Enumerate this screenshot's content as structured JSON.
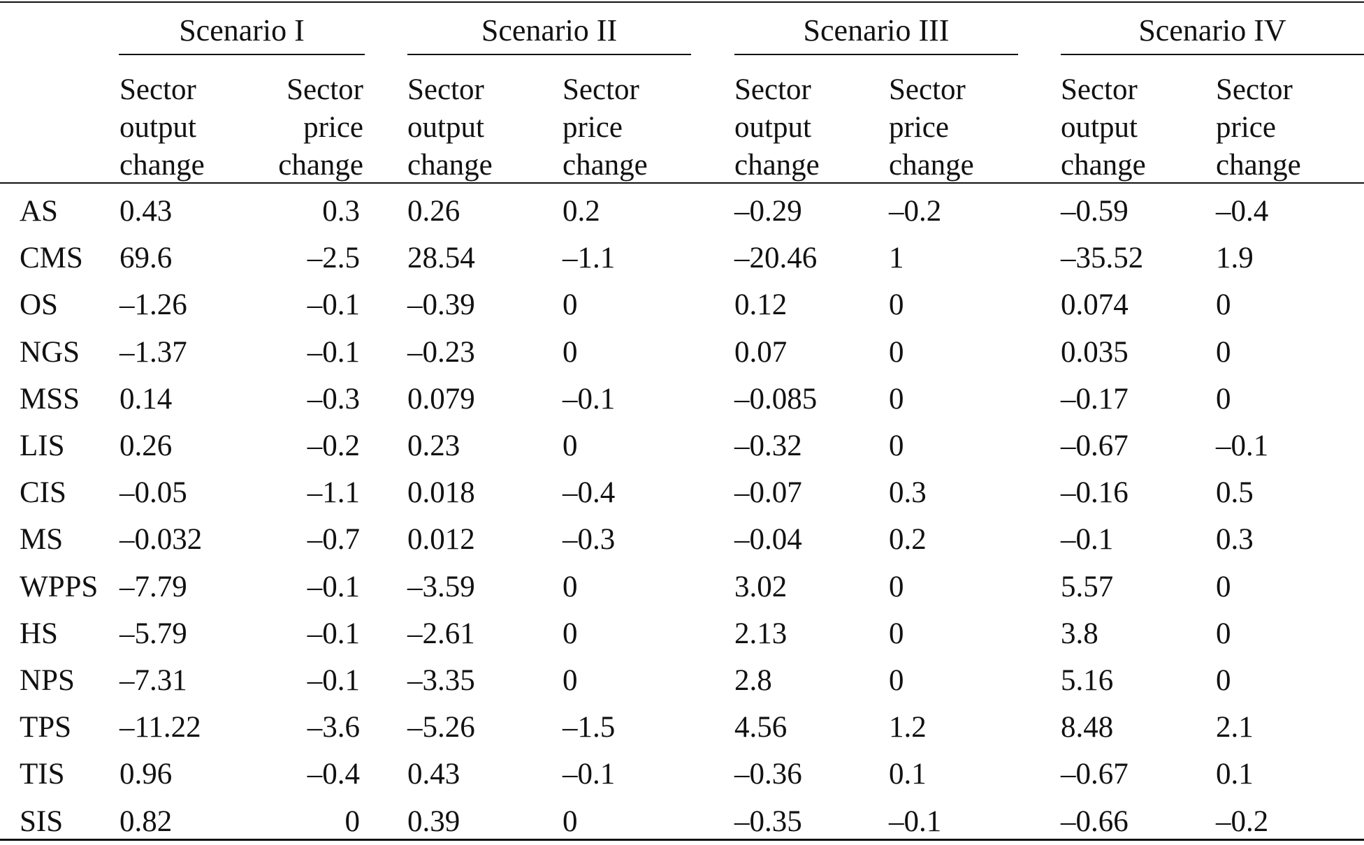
{
  "scenarios": [
    {
      "title": "Scenario I"
    },
    {
      "title": "Scenario II"
    },
    {
      "title": "Scenario III"
    },
    {
      "title": "Scenario IV"
    }
  ],
  "subheaders": {
    "output": "Sector\noutput\nchange",
    "price": "Sector\nprice\nchange"
  },
  "rows": [
    {
      "sector": "AS",
      "values": [
        "0.43",
        "0.3",
        "0.26",
        "0.2",
        "–0.29",
        "–0.2",
        "–0.59",
        "–0.4"
      ]
    },
    {
      "sector": "CMS",
      "values": [
        "69.6",
        "–2.5",
        "28.54",
        "–1.1",
        "–20.46",
        "1",
        "–35.52",
        "1.9"
      ]
    },
    {
      "sector": "OS",
      "values": [
        "–1.26",
        "–0.1",
        "–0.39",
        "0",
        "0.12",
        "0",
        "0.074",
        "0"
      ]
    },
    {
      "sector": "NGS",
      "values": [
        "–1.37",
        "–0.1",
        "–0.23",
        "0",
        "0.07",
        "0",
        "0.035",
        "0"
      ]
    },
    {
      "sector": "MSS",
      "values": [
        "0.14",
        "–0.3",
        "0.079",
        "–0.1",
        "–0.085",
        "0",
        "–0.17",
        "0"
      ]
    },
    {
      "sector": "LIS",
      "values": [
        "0.26",
        "–0.2",
        "0.23",
        "0",
        "–0.32",
        "0",
        "–0.67",
        "–0.1"
      ]
    },
    {
      "sector": "CIS",
      "values": [
        "–0.05",
        "–1.1",
        "0.018",
        "–0.4",
        "–0.07",
        "0.3",
        "–0.16",
        "0.5"
      ]
    },
    {
      "sector": "MS",
      "values": [
        "–0.032",
        "–0.7",
        "0.012",
        "–0.3",
        "–0.04",
        "0.2",
        "–0.1",
        "0.3"
      ]
    },
    {
      "sector": "WPPS",
      "values": [
        "–7.79",
        "–0.1",
        "–3.59",
        "0",
        "3.02",
        "0",
        "5.57",
        "0"
      ]
    },
    {
      "sector": "HS",
      "values": [
        "–5.79",
        "–0.1",
        "–2.61",
        "0",
        "2.13",
        "0",
        "3.8",
        "0"
      ]
    },
    {
      "sector": "NPS",
      "values": [
        "–7.31",
        "–0.1",
        "–3.35",
        "0",
        "2.8",
        "0",
        "5.16",
        "0"
      ]
    },
    {
      "sector": "TPS",
      "values": [
        "–11.22",
        "–3.6",
        "–5.26",
        "–1.5",
        "4.56",
        "1.2",
        "8.48",
        "2.1"
      ]
    },
    {
      "sector": "TIS",
      "values": [
        "0.96",
        "–0.4",
        "0.43",
        "–0.1",
        "–0.36",
        "0.1",
        "–0.67",
        "0.1"
      ]
    },
    {
      "sector": "SIS",
      "values": [
        "0.82",
        "0",
        "0.39",
        "0",
        "–0.35",
        "–0.1",
        "–0.66",
        "–0.2"
      ]
    }
  ]
}
